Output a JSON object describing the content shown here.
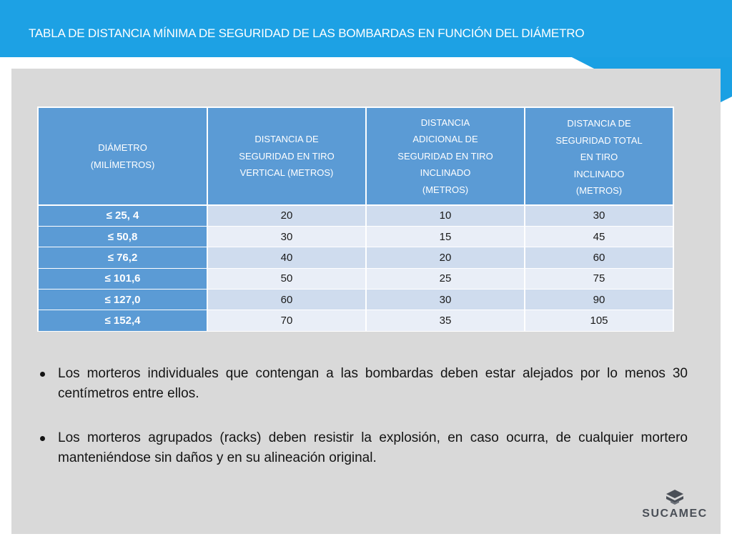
{
  "slide": {
    "title": "TABLA DE DISTANCIA MÍNIMA DE SEGURIDAD DE LAS BOMBARDAS EN FUNCIÓN DEL DIÁMETRO"
  },
  "table": {
    "headers": [
      [
        "DIÁMETRO",
        "(MILÍMETROS)"
      ],
      [
        "DISTANCIA DE",
        "SEGURIDAD EN TIRO",
        "VERTICAL (METROS)"
      ],
      [
        "DISTANCIA",
        "ADICIONAL DE",
        "SEGURIDAD EN TIRO",
        "INCLINADO",
        "(METROS)"
      ],
      [
        "DISTANCIA DE",
        "SEGURIDAD TOTAL",
        "EN TIRO",
        "INCLINADO",
        "(METROS)"
      ]
    ],
    "rows": [
      [
        "≤ 25, 4",
        "20",
        "10",
        "30"
      ],
      [
        "≤ 50,8",
        "30",
        "15",
        "45"
      ],
      [
        "≤ 76,2",
        "40",
        "20",
        "60"
      ],
      [
        "≤ 101,6",
        "50",
        "25",
        "75"
      ],
      [
        "≤ 127,0",
        "60",
        "30",
        "90"
      ],
      [
        "≤ 152,4",
        "70",
        "35",
        "105"
      ]
    ]
  },
  "bullets": [
    "Los morteros individuales que contengan a las bombardas deben estar alejados  por lo menos 30 centímetros entre ellos.",
    "Los morteros agrupados (racks) deben resistir la explosión, en caso ocurra, de cualquier mortero manteniéndose sin daños y en su alineación original."
  ],
  "logo": {
    "text": "SUCAMEC",
    "icon": "sucamec-logo-icon"
  },
  "colors": {
    "header_blue": "#1da1e4",
    "table_header_blue": "#5b9bd5",
    "row_light": "#e9eef7",
    "row_mid": "#cfdcee",
    "panel_gray": "#d9d9d9",
    "logo_gray": "#4a4f57"
  }
}
